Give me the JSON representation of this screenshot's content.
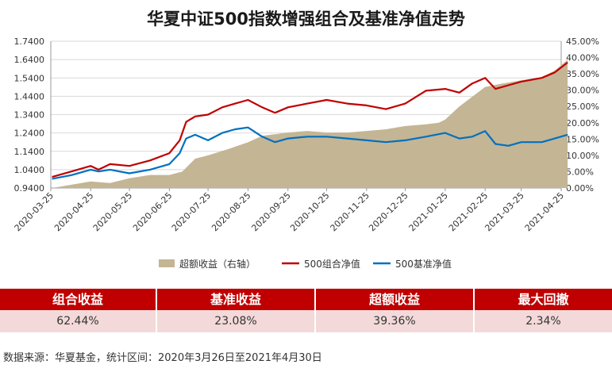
{
  "title": "华夏中证500指数增强组合及基准净值走势",
  "chart_data": {
    "type": "line",
    "title": "华夏中证500指数增强组合及基准净值走势",
    "x_ticks": [
      "2020-03-25",
      "2020-04-25",
      "2020-05-25",
      "2020-06-25",
      "2020-07-25",
      "2020-08-25",
      "2020-09-25",
      "2020-10-25",
      "2020-11-25",
      "2020-12-25",
      "2021-01-25",
      "2021-02-25",
      "2021-03-25",
      "2021-04-25"
    ],
    "y_left": {
      "ticks": [
        "0.9400",
        "1.0400",
        "1.1400",
        "1.2400",
        "1.3400",
        "1.4400",
        "1.5400",
        "1.6400",
        "1.7400"
      ],
      "range": [
        0.94,
        1.74
      ]
    },
    "y_right": {
      "ticks": [
        "0.00%",
        "5.00%",
        "10.00%",
        "15.00%",
        "20.00%",
        "25.00%",
        "30.00%",
        "35.00%",
        "40.00%",
        "45.00%"
      ],
      "range": [
        0,
        45
      ]
    },
    "legend_position": "bottom",
    "grid": true,
    "series": [
      {
        "name": "超额收益（右轴）",
        "kind": "area",
        "axis": "right",
        "color": "#c4b594",
        "points": [
          [
            "2020-03-26",
            0
          ],
          [
            "2020-04-10",
            1
          ],
          [
            "2020-04-25",
            2
          ],
          [
            "2020-05-10",
            1.5
          ],
          [
            "2020-05-25",
            3
          ],
          [
            "2020-06-10",
            4
          ],
          [
            "2020-06-25",
            4
          ],
          [
            "2020-07-05",
            5
          ],
          [
            "2020-07-15",
            9
          ],
          [
            "2020-07-25",
            10
          ],
          [
            "2020-08-10",
            12
          ],
          [
            "2020-08-25",
            14
          ],
          [
            "2020-09-05",
            16
          ],
          [
            "2020-09-25",
            17
          ],
          [
            "2020-10-10",
            17.5
          ],
          [
            "2020-10-25",
            17
          ],
          [
            "2020-11-10",
            17
          ],
          [
            "2020-11-25",
            17.5
          ],
          [
            "2020-12-10",
            18
          ],
          [
            "2020-12-25",
            19
          ],
          [
            "2021-01-10",
            19.5
          ],
          [
            "2021-01-20",
            20
          ],
          [
            "2021-01-25",
            21
          ],
          [
            "2021-02-05",
            25
          ],
          [
            "2021-02-15",
            28
          ],
          [
            "2021-02-25",
            31
          ],
          [
            "2021-03-10",
            32
          ],
          [
            "2021-03-25",
            33
          ],
          [
            "2021-04-10",
            34
          ],
          [
            "2021-04-20",
            36
          ],
          [
            "2021-04-30",
            39.36
          ]
        ]
      },
      {
        "name": "500组合净值",
        "kind": "line",
        "axis": "left",
        "color": "#c00000",
        "points": [
          [
            "2020-03-26",
            1.0
          ],
          [
            "2020-04-10",
            1.03
          ],
          [
            "2020-04-25",
            1.06
          ],
          [
            "2020-05-01",
            1.04
          ],
          [
            "2020-05-10",
            1.07
          ],
          [
            "2020-05-25",
            1.06
          ],
          [
            "2020-06-10",
            1.09
          ],
          [
            "2020-06-25",
            1.13
          ],
          [
            "2020-07-03",
            1.2
          ],
          [
            "2020-07-08",
            1.3
          ],
          [
            "2020-07-15",
            1.33
          ],
          [
            "2020-07-25",
            1.34
          ],
          [
            "2020-08-05",
            1.38
          ],
          [
            "2020-08-15",
            1.4
          ],
          [
            "2020-08-25",
            1.42
          ],
          [
            "2020-09-05",
            1.38
          ],
          [
            "2020-09-15",
            1.35
          ],
          [
            "2020-09-25",
            1.38
          ],
          [
            "2020-10-10",
            1.4
          ],
          [
            "2020-10-25",
            1.42
          ],
          [
            "2020-11-10",
            1.4
          ],
          [
            "2020-11-25",
            1.39
          ],
          [
            "2020-12-10",
            1.37
          ],
          [
            "2020-12-25",
            1.4
          ],
          [
            "2021-01-10",
            1.47
          ],
          [
            "2021-01-25",
            1.48
          ],
          [
            "2021-02-05",
            1.46
          ],
          [
            "2021-02-15",
            1.51
          ],
          [
            "2021-02-25",
            1.54
          ],
          [
            "2021-03-05",
            1.48
          ],
          [
            "2021-03-15",
            1.5
          ],
          [
            "2021-03-25",
            1.52
          ],
          [
            "2021-04-10",
            1.54
          ],
          [
            "2021-04-20",
            1.57
          ],
          [
            "2021-04-30",
            1.6244
          ]
        ]
      },
      {
        "name": "500基准净值",
        "kind": "line",
        "axis": "left",
        "color": "#0070c0",
        "points": [
          [
            "2020-03-26",
            0.99
          ],
          [
            "2020-04-10",
            1.01
          ],
          [
            "2020-04-25",
            1.04
          ],
          [
            "2020-05-01",
            1.03
          ],
          [
            "2020-05-10",
            1.04
          ],
          [
            "2020-05-25",
            1.02
          ],
          [
            "2020-06-10",
            1.04
          ],
          [
            "2020-06-25",
            1.07
          ],
          [
            "2020-07-03",
            1.13
          ],
          [
            "2020-07-08",
            1.21
          ],
          [
            "2020-07-15",
            1.23
          ],
          [
            "2020-07-25",
            1.2
          ],
          [
            "2020-08-05",
            1.24
          ],
          [
            "2020-08-15",
            1.26
          ],
          [
            "2020-08-25",
            1.27
          ],
          [
            "2020-09-05",
            1.22
          ],
          [
            "2020-09-15",
            1.19
          ],
          [
            "2020-09-25",
            1.21
          ],
          [
            "2020-10-10",
            1.22
          ],
          [
            "2020-10-25",
            1.22
          ],
          [
            "2020-11-10",
            1.21
          ],
          [
            "2020-11-25",
            1.2
          ],
          [
            "2020-12-10",
            1.19
          ],
          [
            "2020-12-25",
            1.2
          ],
          [
            "2021-01-10",
            1.22
          ],
          [
            "2021-01-25",
            1.24
          ],
          [
            "2021-02-05",
            1.21
          ],
          [
            "2021-02-15",
            1.22
          ],
          [
            "2021-02-25",
            1.25
          ],
          [
            "2021-03-05",
            1.18
          ],
          [
            "2021-03-15",
            1.17
          ],
          [
            "2021-03-25",
            1.19
          ],
          [
            "2021-04-10",
            1.19
          ],
          [
            "2021-04-20",
            1.21
          ],
          [
            "2021-04-30",
            1.2308
          ]
        ]
      }
    ]
  },
  "table": {
    "headers": [
      "组合收益",
      "基准收益",
      "超额收益",
      "最大回撤"
    ],
    "values": [
      "62.44%",
      "23.08%",
      "39.36%",
      "2.34%"
    ]
  },
  "footer": "数据来源：华夏基金，统计区间：2020年3月26日至2021年4月30日"
}
